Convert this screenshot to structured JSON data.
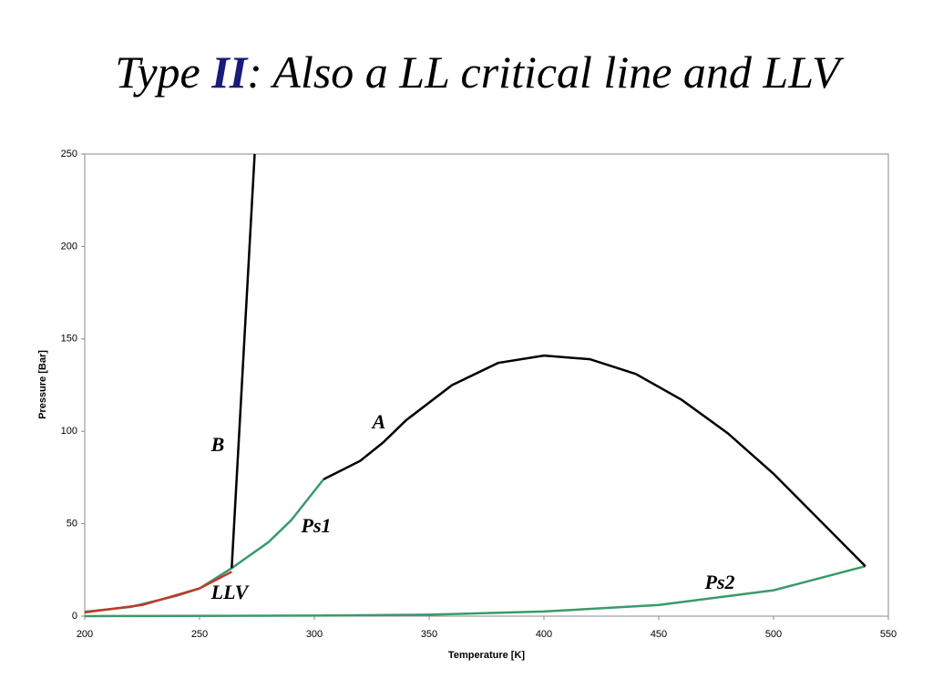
{
  "chart_data": {
    "type": "line",
    "title_parts": [
      "Type ",
      "II",
      ": Also a LL critical line and LLV"
    ],
    "xlabel": "Temperature [K]",
    "ylabel": "Pressure [Bar]",
    "xlim": [
      200,
      550
    ],
    "xticks": [
      200,
      250,
      300,
      350,
      400,
      450,
      500,
      550
    ],
    "ylim": [
      0,
      250
    ],
    "yticks": [
      0,
      50,
      100,
      150,
      200,
      250
    ],
    "grid": false,
    "series": [
      {
        "name": "A",
        "color": "#000000",
        "x": [
          304,
          320,
          330,
          340,
          360,
          380,
          400,
          420,
          440,
          460,
          480,
          500,
          520,
          540
        ],
        "values": [
          74,
          84,
          94,
          106,
          125,
          137,
          141,
          139,
          131,
          117,
          99,
          77,
          52,
          27
        ]
      },
      {
        "name": "B",
        "color": "#000000",
        "x": [
          264,
          274
        ],
        "values": [
          26,
          250
        ]
      },
      {
        "name": "Ps1",
        "color": "#3a9a6a",
        "x": [
          200,
          220,
          240,
          250,
          264,
          280,
          290,
          304
        ],
        "values": [
          2.3,
          5,
          11,
          15,
          26,
          40,
          52,
          74
        ]
      },
      {
        "name": "Ps2",
        "color": "#3a9a6a",
        "x": [
          200,
          300,
          350,
          400,
          450,
          500,
          540
        ],
        "values": [
          0,
          0.3,
          0.8,
          2.5,
          6,
          14,
          27
        ]
      },
      {
        "name": "LLV",
        "color": "#c0392b",
        "x": [
          200,
          225,
          250,
          264
        ],
        "values": [
          2,
          6,
          15,
          24
        ]
      }
    ]
  }
}
